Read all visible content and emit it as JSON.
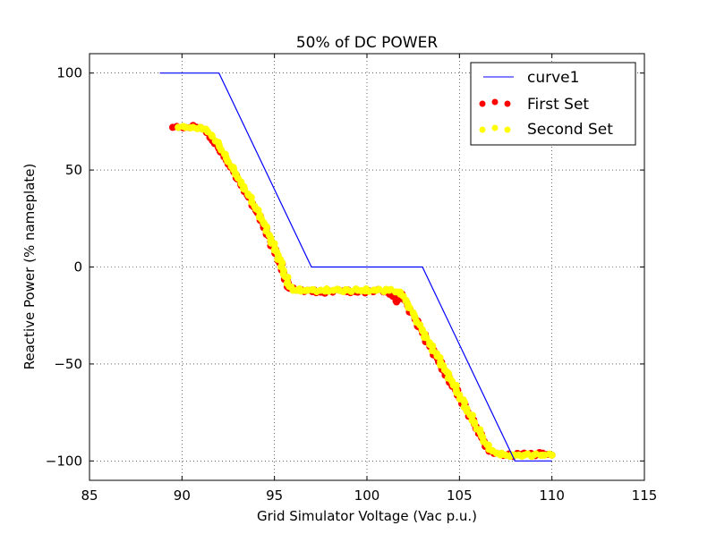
{
  "chart_data": {
    "type": "scatter",
    "title": "50% of DC POWER",
    "xlabel": "Grid Simulator Voltage (Vac p.u.)",
    "ylabel": "Reactive Power (% nameplate)",
    "xlim": [
      85,
      115
    ],
    "ylim": [
      -110,
      110
    ],
    "xticks": [
      85,
      90,
      95,
      100,
      105,
      110,
      115
    ],
    "yticks": [
      -100,
      -50,
      0,
      50,
      100
    ],
    "xtick_labels": [
      "85",
      "90",
      "95",
      "100",
      "105",
      "110",
      "115"
    ],
    "ytick_labels": [
      "−100",
      "−50",
      "0",
      "50",
      "100"
    ],
    "grid": true,
    "legend_position": "top-right",
    "series": [
      {
        "name": "curve1",
        "kind": "line",
        "color": "#0000ff",
        "x": [
          88.8,
          92.0,
          97.0,
          103.0,
          108.0,
          110.0
        ],
        "y": [
          100,
          100,
          0,
          0,
          -100,
          -100
        ]
      },
      {
        "name": "First Set",
        "kind": "scatter",
        "color": "#ff0000",
        "x": [
          89.5,
          89.8,
          90.2,
          90.6,
          91.0,
          91.3,
          91.6,
          92.0,
          92.4,
          92.8,
          93.2,
          93.6,
          94.0,
          94.4,
          94.8,
          95.2,
          95.5,
          95.8,
          96.2,
          96.8,
          97.5,
          98.5,
          99.5,
          100.5,
          101.2,
          101.6,
          101.9,
          102.2,
          102.6,
          103.0,
          103.4,
          103.8,
          104.2,
          104.6,
          105.0,
          105.4,
          105.8,
          106.2,
          106.6,
          107.0,
          107.5,
          108.0,
          108.5,
          109.0,
          109.5,
          110.0
        ],
        "y": [
          72,
          72,
          72,
          73,
          72,
          70,
          66,
          61,
          55,
          49,
          42,
          36,
          29,
          22,
          13,
          5,
          -3,
          -11,
          -12,
          -12,
          -13,
          -12,
          -13,
          -12,
          -13,
          -18,
          -14,
          -20,
          -27,
          -34,
          -41,
          -47,
          -54,
          -60,
          -67,
          -74,
          -81,
          -88,
          -95,
          -96,
          -97,
          -97,
          -96,
          -97,
          -96,
          -97
        ]
      },
      {
        "name": "Second Set",
        "kind": "scatter",
        "color": "#ffff00",
        "x": [
          89.8,
          90.2,
          90.6,
          91.0,
          91.3,
          91.6,
          92.0,
          92.4,
          92.8,
          93.2,
          93.6,
          94.0,
          94.4,
          94.8,
          95.2,
          95.5,
          95.8,
          96.2,
          96.8,
          97.5,
          98.5,
          99.5,
          100.5,
          101.2,
          101.8,
          102.2,
          102.6,
          103.0,
          103.4,
          103.8,
          104.2,
          104.6,
          105.0,
          105.4,
          105.8,
          106.2,
          106.6,
          107.0,
          107.5,
          108.0,
          108.5,
          109.0,
          109.5,
          110.0
        ],
        "y": [
          72,
          72,
          72,
          72,
          71,
          68,
          63,
          56,
          50,
          43,
          37,
          30,
          23,
          14,
          6,
          -2,
          -10,
          -12,
          -12,
          -12,
          -12,
          -12,
          -12,
          -12,
          -13,
          -19,
          -26,
          -33,
          -40,
          -46,
          -53,
          -59,
          -66,
          -73,
          -80,
          -87,
          -94,
          -96,
          -97,
          -97,
          -97,
          -97,
          -97,
          -97
        ]
      }
    ]
  }
}
